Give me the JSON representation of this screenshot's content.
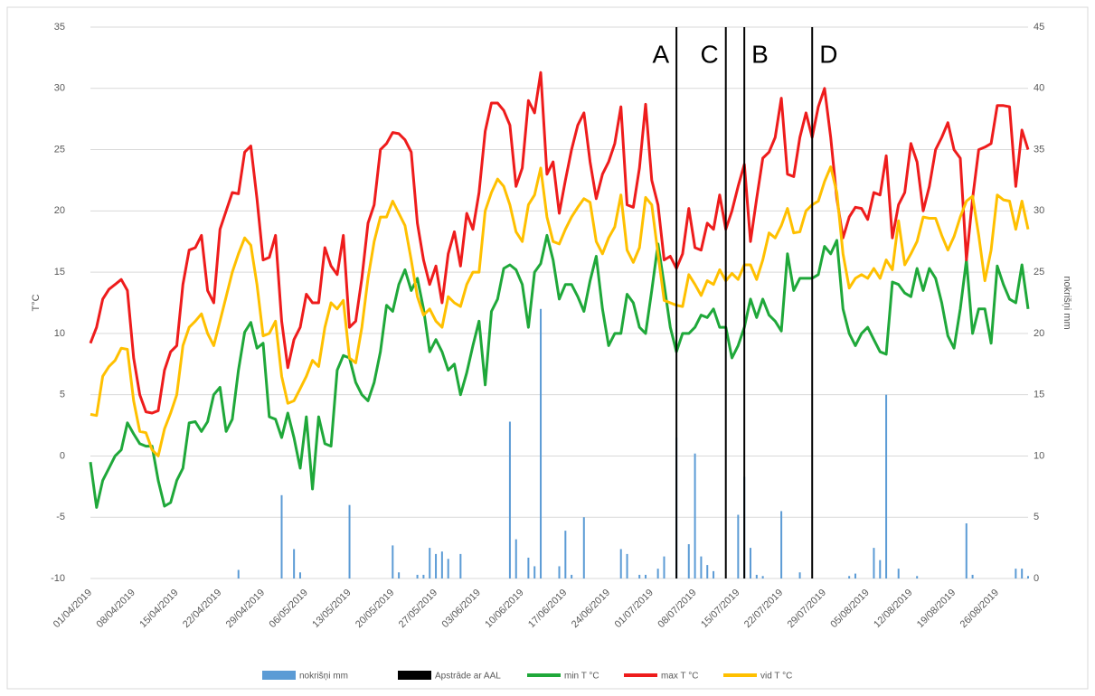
{
  "chart_data": {
    "type": "line",
    "categories": [
      "01/04/2019",
      null,
      null,
      null,
      null,
      null,
      null,
      "08/04/2019",
      null,
      null,
      null,
      null,
      null,
      null,
      "15/04/2019",
      null,
      null,
      null,
      null,
      null,
      null,
      "22/04/2019",
      null,
      null,
      null,
      null,
      null,
      null,
      "29/04/2019",
      null,
      null,
      null,
      null,
      null,
      null,
      "06/05/2019",
      null,
      null,
      null,
      null,
      null,
      null,
      "13/05/2019",
      null,
      null,
      null,
      null,
      null,
      null,
      "20/05/2019",
      null,
      null,
      null,
      null,
      null,
      null,
      "27/05/2019",
      null,
      null,
      null,
      null,
      null,
      null,
      "03/06/2019",
      null,
      null,
      null,
      null,
      null,
      null,
      "10/06/2019",
      null,
      null,
      null,
      null,
      null,
      null,
      "17/06/2019",
      null,
      null,
      null,
      null,
      null,
      null,
      "24/06/2019",
      null,
      null,
      null,
      null,
      null,
      null,
      "01/07/2019",
      null,
      null,
      null,
      null,
      null,
      null,
      "08/07/2019",
      null,
      null,
      null,
      null,
      null,
      null,
      "15/07/2019",
      null,
      null,
      null,
      null,
      null,
      null,
      "22/07/2019",
      null,
      null,
      null,
      null,
      null,
      null,
      "29/07/2019",
      null,
      null,
      null,
      null,
      null,
      null,
      "05/08/2019",
      null,
      null,
      null,
      null,
      null,
      null,
      "12/08/2019",
      null,
      null,
      null,
      null,
      null,
      null,
      "19/08/2019",
      null,
      null,
      null,
      null,
      null,
      null,
      "26/08/2019",
      null,
      null,
      null,
      null,
      null
    ],
    "series": [
      {
        "name": "nokrišņi mm",
        "color": "#5b9bd5",
        "type": "bar",
        "axis": "y2",
        "values": [
          0,
          0,
          0,
          0,
          0,
          0,
          0,
          0,
          0,
          0,
          0,
          0,
          0,
          0,
          0,
          0,
          0,
          0,
          0,
          0,
          0,
          0,
          0,
          0,
          0.7,
          0,
          0,
          0,
          0,
          0,
          0,
          6.8,
          0,
          2.4,
          0.5,
          0,
          0,
          0,
          0,
          0,
          0,
          0,
          6,
          0,
          0,
          0,
          0,
          0,
          0,
          2.7,
          0.5,
          0,
          0,
          0.3,
          0.3,
          2.5,
          2,
          2.2,
          1.6,
          0,
          2,
          0,
          0,
          0,
          0,
          0,
          0,
          0,
          12.8,
          3.2,
          0,
          1.7,
          1,
          22,
          0,
          0,
          1,
          3.9,
          0.3,
          0,
          5,
          0,
          0,
          0,
          0,
          0,
          2.4,
          2,
          0,
          0.3,
          0.3,
          0,
          0.8,
          1.8,
          0,
          11.5,
          0,
          2.8,
          10.2,
          1.8,
          1.1,
          0.6,
          0,
          0,
          0,
          5.2,
          8.3,
          2.5,
          0.3,
          0.2,
          0,
          0,
          5.5,
          0,
          0,
          0.5,
          0,
          0,
          0,
          0,
          0,
          0,
          0,
          0.2,
          0.4,
          0,
          0,
          2.5,
          1.5,
          15,
          0,
          0.8,
          0,
          0,
          0.2,
          0,
          0,
          0,
          0,
          0,
          0,
          0,
          4.5,
          0.3,
          0,
          0,
          0,
          0,
          0,
          0,
          0.8,
          0.8,
          0.2
        ]
      },
      {
        "name": "min T °C",
        "color": "#1fa83a",
        "type": "line",
        "values": [
          -0.5,
          -4.2,
          -2,
          -1,
          0,
          0.5,
          2.7,
          1.8,
          1,
          0.8,
          0.8,
          -2,
          -4.1,
          -3.8,
          -2,
          -1,
          2.7,
          2.8,
          2,
          2.8,
          5,
          5.6,
          2,
          3,
          7,
          10.1,
          10.9,
          8.8,
          9.2,
          3.2,
          3,
          1.5,
          3.5,
          1.5,
          -1,
          3.2,
          -2.7,
          3.2,
          1,
          0.8,
          7,
          8.2,
          8,
          6,
          5,
          4.5,
          6,
          8.5,
          12.3,
          11.8,
          14,
          15.2,
          13.5,
          14.5,
          12,
          8.5,
          9.5,
          8.5,
          7,
          7.5,
          5,
          6.8,
          9,
          11,
          5.8,
          11.8,
          12.8,
          15.3,
          15.6,
          15.2,
          14,
          10.5,
          15,
          15.7,
          18,
          16,
          12.8,
          14,
          14,
          13,
          11.8,
          14.3,
          16.3,
          12,
          9,
          10,
          10,
          13.2,
          12.5,
          10.5,
          10,
          13.5,
          17.3,
          14,
          10.5,
          8.5,
          10,
          10,
          10.5,
          11.5,
          11.3,
          12,
          10.5,
          10.5,
          8,
          9,
          10.5,
          12.8,
          11.3,
          12.8,
          11.5,
          11,
          10.2,
          16.5,
          13.5,
          14.5,
          14.5,
          14.5,
          14.8,
          17.1,
          16.5,
          17.6,
          12,
          10,
          9,
          10,
          10.5,
          9.5,
          8.5,
          8.3,
          14.2,
          14,
          13.3,
          13,
          15.3,
          13.5,
          15.3,
          14.5,
          12.5,
          9.8,
          8.8,
          12,
          16,
          10,
          12,
          12,
          9.2,
          15.5,
          14,
          12.8,
          12.5,
          15.6,
          12
        ]
      },
      {
        "name": "max T °C",
        "color": "#ee1c1c",
        "type": "line",
        "values": [
          9.2,
          10.5,
          12.8,
          13.6,
          14,
          14.4,
          13.5,
          8,
          5,
          3.6,
          3.5,
          3.7,
          7,
          8.5,
          9,
          14,
          16.8,
          17,
          18,
          13.5,
          12.5,
          18.5,
          20,
          21.5,
          21.4,
          24.8,
          25.3,
          21,
          16,
          16.2,
          18,
          11,
          7.2,
          9.5,
          10.5,
          13.2,
          12.5,
          12.5,
          17,
          15.5,
          14.8,
          18,
          10.5,
          11,
          14.5,
          19,
          20.5,
          25,
          25.5,
          26.4,
          26.3,
          25.8,
          24.8,
          19,
          16,
          14,
          15.5,
          12.5,
          16.5,
          18.3,
          15.5,
          19.8,
          18.5,
          21.5,
          26.5,
          28.8,
          28.8,
          28.2,
          27,
          22,
          23.5,
          29,
          28,
          31.3,
          23,
          24,
          19.8,
          22.5,
          25,
          27,
          28,
          24,
          21,
          23,
          24,
          25.5,
          28.5,
          20.5,
          20.3,
          23.5,
          28.7,
          22.5,
          20.5,
          16,
          16.3,
          15.3,
          16.5,
          20.2,
          17,
          16.8,
          19,
          18.5,
          21.3,
          18.5,
          20,
          22,
          23.8,
          17.5,
          21,
          24.3,
          24.8,
          26,
          29.2,
          23,
          22.8,
          26,
          28,
          26,
          28.5,
          30,
          26,
          21,
          17.8,
          19.5,
          20.3,
          20.2,
          19.3,
          21.5,
          21.3,
          24.5,
          17.8,
          20.5,
          21.5,
          25.5,
          24,
          20,
          22,
          25,
          26,
          27.2,
          25,
          24.3,
          16,
          21,
          25,
          25.2,
          25.5,
          28.6,
          28.6,
          28.5,
          22,
          26.6,
          25
        ]
      },
      {
        "name": "vid T °C",
        "color": "#ffc000",
        "type": "line",
        "values": [
          3.4,
          3.3,
          6.5,
          7.3,
          7.8,
          8.8,
          8.7,
          4.5,
          2,
          1.9,
          0.5,
          0,
          2.2,
          3.5,
          5,
          9,
          10.5,
          11,
          11.6,
          10,
          9,
          11,
          13,
          15,
          16.5,
          17.8,
          17.2,
          14,
          9.8,
          10,
          11,
          6.5,
          4.3,
          4.5,
          5.5,
          6.5,
          7.8,
          7.3,
          10.5,
          12.5,
          12,
          12.7,
          8,
          7.6,
          10.5,
          14.5,
          17.5,
          19.5,
          19.5,
          20.8,
          19.8,
          18.8,
          16,
          13,
          11.5,
          12,
          11,
          10.5,
          13,
          12.5,
          12.2,
          14,
          15,
          15,
          20,
          21.5,
          22.6,
          22,
          20.5,
          18.3,
          17.5,
          20.5,
          21.3,
          23.5,
          19.5,
          17.5,
          17.3,
          18.5,
          19.5,
          20.3,
          21,
          20.7,
          17.5,
          16.5,
          17.8,
          18.7,
          21.3,
          16.8,
          15.8,
          17,
          21.1,
          20.5,
          16.5,
          12.7,
          12.5,
          12.3,
          12.2,
          14.8,
          14,
          13.1,
          14.3,
          14,
          15.2,
          14.3,
          14.9,
          14.4,
          15.6,
          15.6,
          14.4,
          16,
          18.2,
          17.8,
          18.8,
          20.2,
          18.2,
          18.3,
          20,
          20.5,
          20.8,
          22.4,
          23.6,
          21.5,
          16.5,
          13.7,
          14.5,
          14.8,
          14.5,
          15.3,
          14.5,
          16,
          15.2,
          19.2,
          15.6,
          16.5,
          17.5,
          19.5,
          19.4,
          19.4,
          18,
          16.8,
          17.9,
          19.5,
          20.8,
          21.2,
          18,
          14.3,
          16.8,
          21.3,
          20.9,
          20.8,
          18.5,
          20.8,
          18.5
        ]
      }
    ],
    "markers": {
      "name": "Apstrāde ar AAL",
      "color": "#000000",
      "x": [
        95,
        103,
        106,
        117
      ],
      "labels": [
        "A",
        "C",
        "B",
        "D"
      ]
    },
    "ylabel": "T°C",
    "y2label": "nokrišņi mm",
    "ylim": [
      -10,
      35
    ],
    "yticks": [
      -10,
      -5,
      0,
      5,
      10,
      15,
      20,
      25,
      30,
      35
    ],
    "y2lim": [
      0,
      45
    ],
    "y2ticks": [
      0,
      5,
      10,
      15,
      20,
      25,
      30,
      35,
      40,
      45
    ],
    "grid": true
  }
}
